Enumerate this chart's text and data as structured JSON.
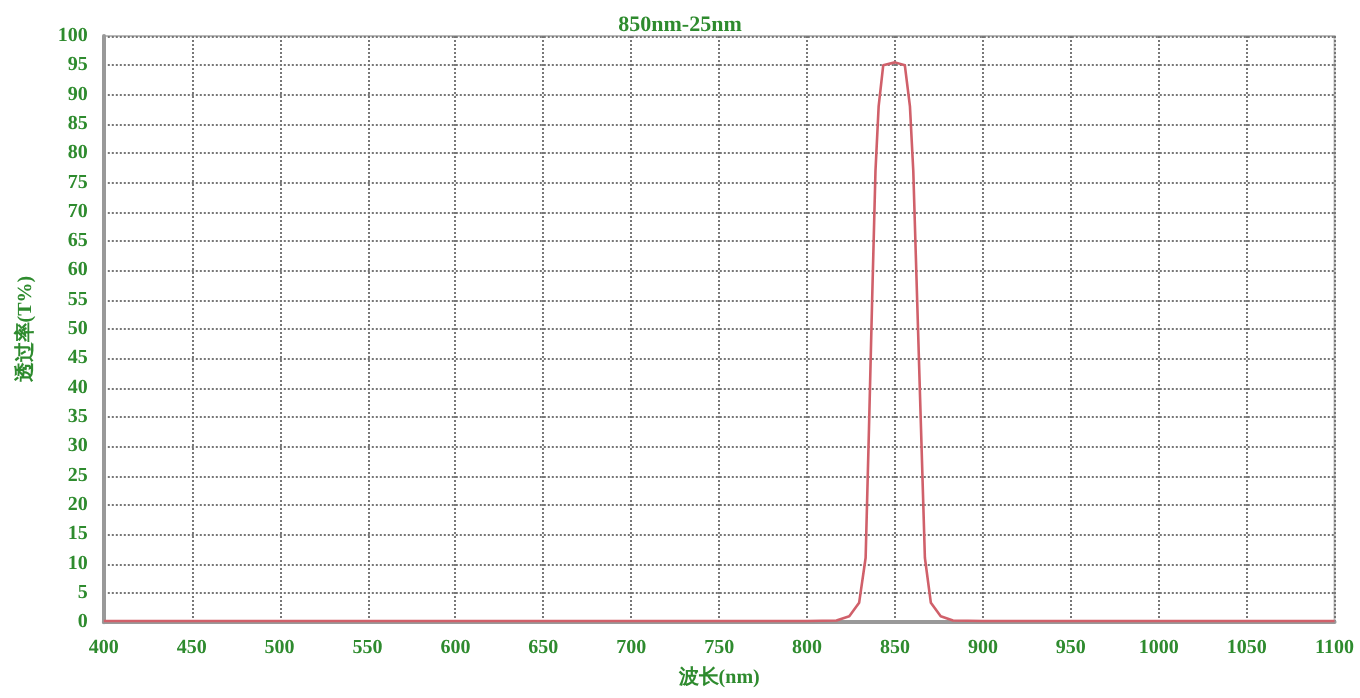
{
  "chart_data": {
    "type": "line",
    "title": "850nm-25nm",
    "xlabel": "波长(nm)",
    "ylabel": "透过率(T%)",
    "x": [
      400,
      500,
      600,
      700,
      780,
      800,
      816.7,
      824,
      829.6,
      833.3,
      835.2,
      837,
      838.9,
      840.7,
      843.3,
      850,
      855.6,
      858.5,
      860.4,
      862.6,
      864.8,
      867,
      870.4,
      876,
      883,
      900,
      950,
      1000,
      1050,
      1100
    ],
    "series": [
      {
        "color": "#d0606a",
        "values": [
          0.2,
          0.2,
          0.2,
          0.2,
          0.2,
          0.2,
          0.3,
          1,
          3.3,
          11,
          33,
          55,
          77,
          88,
          95,
          95.5,
          95,
          88,
          77,
          55,
          33,
          11,
          3.3,
          1,
          0.3,
          0.2,
          0.2,
          0.2,
          0.2,
          0.2
        ]
      }
    ],
    "xlim": [
      400,
      1100
    ],
    "xticks": [
      400,
      450,
      500,
      550,
      600,
      650,
      700,
      750,
      800,
      850,
      900,
      950,
      1000,
      1050,
      1100
    ],
    "ylim": [
      0,
      100
    ],
    "yticks": [
      0,
      5,
      10,
      15,
      20,
      25,
      30,
      35,
      40,
      45,
      50,
      55,
      60,
      65,
      70,
      75,
      80,
      85,
      90,
      95,
      100
    ],
    "grid": true,
    "marker": "none",
    "line_style": "solid"
  }
}
